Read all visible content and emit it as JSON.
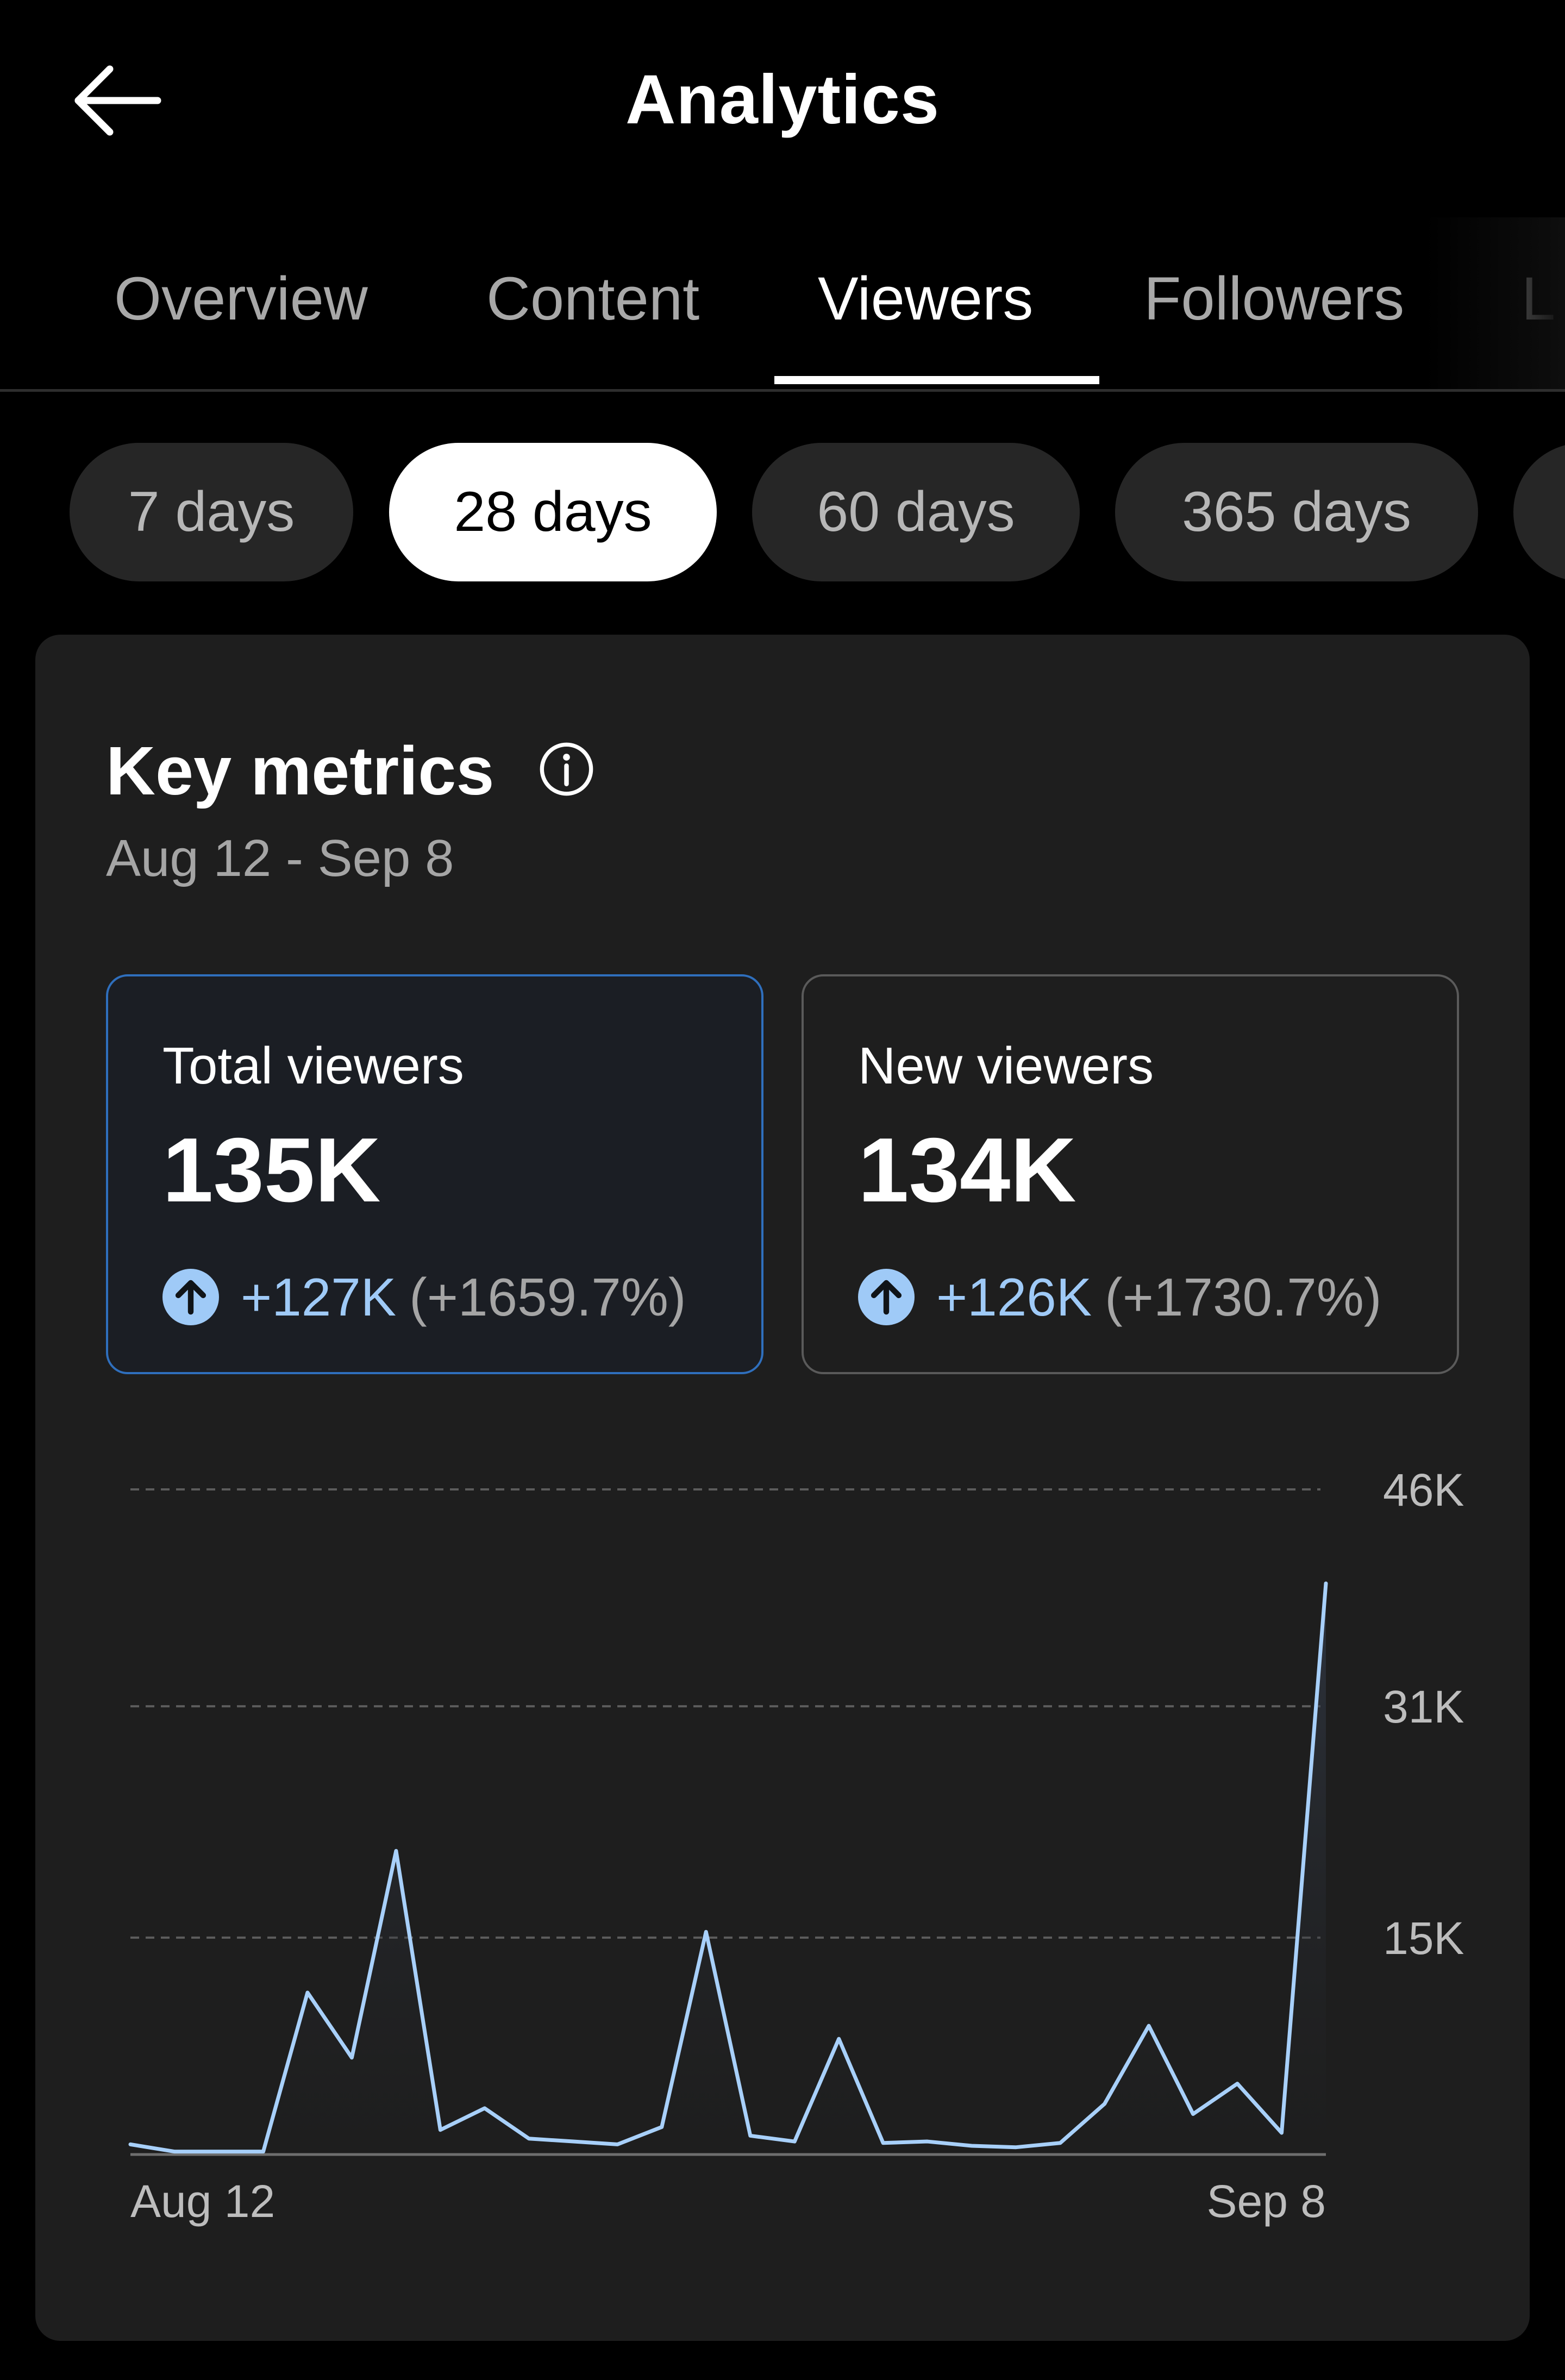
{
  "header": {
    "title": "Analytics",
    "back_icon": "arrow-left-icon"
  },
  "tabs": [
    {
      "label": "Overview",
      "active": false
    },
    {
      "label": "Content",
      "active": false
    },
    {
      "label": "Viewers",
      "active": true
    },
    {
      "label": "Followers",
      "active": false
    },
    {
      "label": "L",
      "active": false
    }
  ],
  "ranges": [
    {
      "label": "7 days",
      "active": false
    },
    {
      "label": "28 days",
      "active": true
    },
    {
      "label": "60 days",
      "active": false
    },
    {
      "label": "365 days",
      "active": false
    }
  ],
  "key_metrics": {
    "title": "Key metrics",
    "info_icon": "info-circle-icon",
    "date_range": "Aug 12 - Sep 8",
    "metrics": [
      {
        "label": "Total viewers",
        "value": "135K",
        "change": "+127K",
        "change_pct": "(+1659.7%)",
        "selected": true
      },
      {
        "label": "New viewers",
        "value": "134K",
        "change": "+126K",
        "change_pct": "(+1730.7%)",
        "selected": false
      }
    ]
  },
  "colors": {
    "accent": "#9fcaf7",
    "selected_border": "#2f6fbd",
    "card_bg": "#1e1e1e",
    "line": "#a8d0fa"
  },
  "chart_data": {
    "type": "line",
    "x_start_label": "Aug 12",
    "x_end_label": "Sep 8",
    "y_ticks": [
      {
        "label": "46K",
        "value": 46000
      },
      {
        "label": "31K",
        "value": 31000
      },
      {
        "label": "15K",
        "value": 15000
      }
    ],
    "ylim": [
      0,
      46000
    ],
    "grid": true,
    "series": [
      {
        "values": [
          700,
          200,
          200,
          200,
          11200,
          6700,
          21000,
          1700,
          3200,
          1100,
          900,
          700,
          1900,
          15400,
          1300,
          900,
          8000,
          800,
          900,
          600,
          500,
          800,
          3500,
          8900,
          2800,
          4900,
          1500,
          39500
        ]
      }
    ]
  }
}
